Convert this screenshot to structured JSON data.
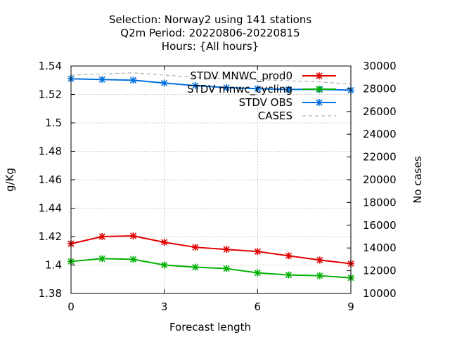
{
  "chart_data": {
    "type": "line",
    "title_lines": [
      "Selection: Norway2 using   141 stations",
      "Q2m   Period: 20220806-20220815",
      "Hours: {All hours}"
    ],
    "xlabel": "Forecast length",
    "ylabel": "g/Kg",
    "y2label": "No cases",
    "xlim": [
      0,
      9
    ],
    "ylim": [
      1.38,
      1.54
    ],
    "y2lim": [
      10000,
      30000
    ],
    "xticks": [
      0,
      3,
      6,
      9
    ],
    "yticks": [
      1.38,
      1.4,
      1.42,
      1.44,
      1.46,
      1.48,
      1.5,
      1.52,
      1.54
    ],
    "y2ticks": [
      10000,
      12000,
      14000,
      16000,
      18000,
      20000,
      22000,
      24000,
      26000,
      28000,
      30000
    ],
    "grid": true,
    "legend_position": "top-right",
    "x": [
      0,
      1,
      2,
      3,
      4,
      5,
      6,
      7,
      8,
      9
    ],
    "series": [
      {
        "name": "STDV MNWC_prod0",
        "color": "#e00000",
        "axis": "y",
        "marker": "star",
        "values": [
          1.415,
          1.42,
          1.4205,
          1.416,
          1.4125,
          1.411,
          1.4095,
          1.4065,
          1.4035,
          1.401
        ]
      },
      {
        "name": "STDV mnwc_cycling",
        "color": "#00b000",
        "axis": "y",
        "marker": "star",
        "values": [
          1.4025,
          1.4045,
          1.404,
          1.4,
          1.3985,
          1.3975,
          1.3945,
          1.393,
          1.3925,
          1.391
        ]
      },
      {
        "name": "STDV OBS",
        "color": "#0070e0",
        "axis": "y",
        "marker": "star",
        "values": [
          1.531,
          1.5305,
          1.53,
          1.528,
          1.5262,
          1.5248,
          1.524,
          1.5235,
          1.5235,
          1.523
        ]
      },
      {
        "name": "CASES",
        "color": "#a0a0a0",
        "axis": "y2",
        "marker": "none",
        "dashed": true,
        "values": [
          29200,
          29300,
          29400,
          29200,
          29000,
          28900,
          28800,
          28700,
          28600,
          28400
        ]
      }
    ]
  }
}
